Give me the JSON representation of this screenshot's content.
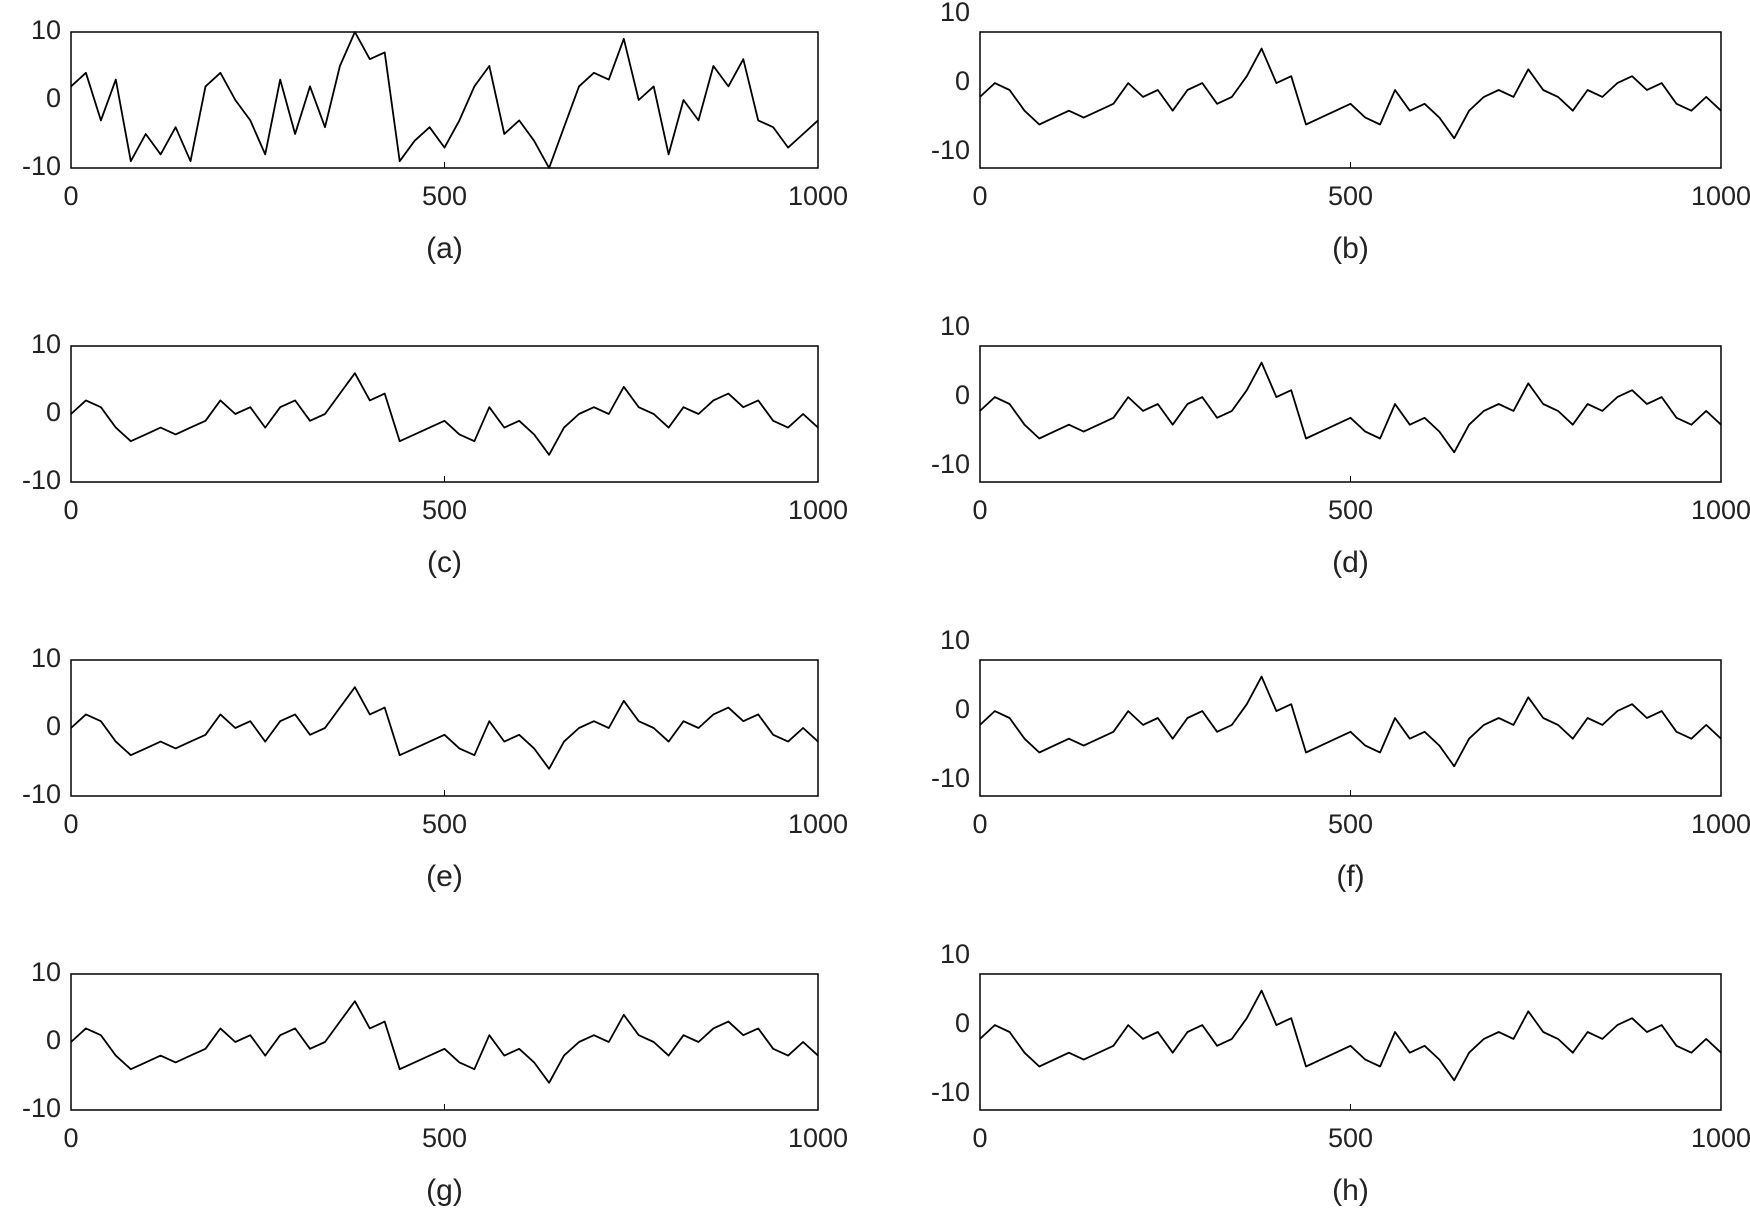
{
  "chart_data": [
    {
      "type": "line",
      "caption": "(a)",
      "color": "#000000",
      "xlim": [
        0,
        1000
      ],
      "xticks": [
        0,
        500,
        1000
      ],
      "ylim": [
        -10,
        10
      ],
      "yticks": [
        -10,
        0,
        10
      ],
      "x": [
        0,
        20,
        40,
        60,
        80,
        100,
        120,
        140,
        160,
        180,
        200,
        220,
        240,
        260,
        280,
        300,
        320,
        340,
        360,
        380,
        400,
        420,
        440,
        460,
        480,
        500,
        520,
        540,
        560,
        580,
        600,
        620,
        640,
        660,
        680,
        700,
        720,
        740,
        760,
        780,
        800,
        820,
        840,
        860,
        880,
        900,
        920,
        940,
        960,
        980,
        1000
      ],
      "values": [
        2,
        4,
        -3,
        3,
        -9,
        -5,
        -8,
        -4,
        -9,
        2,
        4,
        0,
        -3,
        -8,
        3,
        -5,
        2,
        -4,
        5,
        10,
        6,
        7,
        -9,
        -6,
        -4,
        -7,
        -3,
        2,
        5,
        -5,
        -3,
        -6,
        -10,
        -4,
        2,
        4,
        3,
        9,
        0,
        2,
        -8,
        0,
        -3,
        5,
        2,
        6,
        -3,
        -4,
        -7,
        -5,
        -3
      ]
    },
    {
      "type": "line",
      "caption": "(b)",
      "color": "#000000",
      "xlim": [
        0,
        1000
      ],
      "xticks": [
        0,
        500,
        1000
      ],
      "ylim": [
        -12.3,
        7.4
      ],
      "yticks": [
        -10,
        0,
        10
      ],
      "x": [
        0,
        20,
        40,
        60,
        80,
        100,
        120,
        140,
        160,
        180,
        200,
        220,
        240,
        260,
        280,
        300,
        320,
        340,
        360,
        380,
        400,
        420,
        440,
        460,
        480,
        500,
        520,
        540,
        560,
        580,
        600,
        620,
        640,
        660,
        680,
        700,
        720,
        740,
        760,
        780,
        800,
        820,
        840,
        860,
        880,
        900,
        920,
        940,
        960,
        980,
        1000
      ],
      "values": [
        -2,
        0,
        -1,
        -4,
        -6,
        -5,
        -4,
        -5,
        -4,
        -3,
        0,
        -2,
        -1,
        -4,
        -1,
        0,
        -3,
        -2,
        1,
        5,
        0,
        1,
        -6,
        -5,
        -4,
        -3,
        -5,
        -6,
        -1,
        -4,
        -3,
        -5,
        -8,
        -4,
        -2,
        -1,
        -2,
        2,
        -1,
        -2,
        -4,
        -1,
        -2,
        0,
        1,
        -1,
        0,
        -3,
        -4,
        -2,
        -4
      ]
    },
    {
      "type": "line",
      "caption": "(c)",
      "color": "#000000",
      "xlim": [
        0,
        1000
      ],
      "xticks": [
        0,
        500,
        1000
      ],
      "ylim": [
        -10,
        10
      ],
      "yticks": [
        -10,
        0,
        10
      ],
      "x": [
        0,
        20,
        40,
        60,
        80,
        100,
        120,
        140,
        160,
        180,
        200,
        220,
        240,
        260,
        280,
        300,
        320,
        340,
        360,
        380,
        400,
        420,
        440,
        460,
        480,
        500,
        520,
        540,
        560,
        580,
        600,
        620,
        640,
        660,
        680,
        700,
        720,
        740,
        760,
        780,
        800,
        820,
        840,
        860,
        880,
        900,
        920,
        940,
        960,
        980,
        1000
      ],
      "values": [
        0,
        2,
        1,
        -2,
        -4,
        -3,
        -2,
        -3,
        -2,
        -1,
        2,
        0,
        1,
        -2,
        1,
        2,
        -1,
        0,
        3,
        6,
        2,
        3,
        -4,
        -3,
        -2,
        -1,
        -3,
        -4,
        1,
        -2,
        -1,
        -3,
        -6,
        -2,
        0,
        1,
        0,
        4,
        1,
        0,
        -2,
        1,
        0,
        2,
        3,
        1,
        2,
        -1,
        -2,
        0,
        -2
      ]
    },
    {
      "type": "line",
      "caption": "(d)",
      "color": "#000000",
      "xlim": [
        0,
        1000
      ],
      "xticks": [
        0,
        500,
        1000
      ],
      "ylim": [
        -12.3,
        7.4
      ],
      "yticks": [
        -10,
        0,
        10
      ],
      "x": [
        0,
        20,
        40,
        60,
        80,
        100,
        120,
        140,
        160,
        180,
        200,
        220,
        240,
        260,
        280,
        300,
        320,
        340,
        360,
        380,
        400,
        420,
        440,
        460,
        480,
        500,
        520,
        540,
        560,
        580,
        600,
        620,
        640,
        660,
        680,
        700,
        720,
        740,
        760,
        780,
        800,
        820,
        840,
        860,
        880,
        900,
        920,
        940,
        960,
        980,
        1000
      ],
      "values": [
        -2,
        0,
        -1,
        -4,
        -6,
        -5,
        -4,
        -5,
        -4,
        -3,
        0,
        -2,
        -1,
        -4,
        -1,
        0,
        -3,
        -2,
        1,
        5,
        0,
        1,
        -6,
        -5,
        -4,
        -3,
        -5,
        -6,
        -1,
        -4,
        -3,
        -5,
        -8,
        -4,
        -2,
        -1,
        -2,
        2,
        -1,
        -2,
        -4,
        -1,
        -2,
        0,
        1,
        -1,
        0,
        -3,
        -4,
        -2,
        -4
      ]
    },
    {
      "type": "line",
      "caption": "(e)",
      "color": "#000000",
      "xlim": [
        0,
        1000
      ],
      "xticks": [
        0,
        500,
        1000
      ],
      "ylim": [
        -10,
        10
      ],
      "yticks": [
        -10,
        0,
        10
      ],
      "x": [
        0,
        20,
        40,
        60,
        80,
        100,
        120,
        140,
        160,
        180,
        200,
        220,
        240,
        260,
        280,
        300,
        320,
        340,
        360,
        380,
        400,
        420,
        440,
        460,
        480,
        500,
        520,
        540,
        560,
        580,
        600,
        620,
        640,
        660,
        680,
        700,
        720,
        740,
        760,
        780,
        800,
        820,
        840,
        860,
        880,
        900,
        920,
        940,
        960,
        980,
        1000
      ],
      "values": [
        0,
        2,
        1,
        -2,
        -4,
        -3,
        -2,
        -3,
        -2,
        -1,
        2,
        0,
        1,
        -2,
        1,
        2,
        -1,
        0,
        3,
        6,
        2,
        3,
        -4,
        -3,
        -2,
        -1,
        -3,
        -4,
        1,
        -2,
        -1,
        -3,
        -6,
        -2,
        0,
        1,
        0,
        4,
        1,
        0,
        -2,
        1,
        0,
        2,
        3,
        1,
        2,
        -1,
        -2,
        0,
        -2
      ]
    },
    {
      "type": "line",
      "caption": "(f)",
      "color": "#000000",
      "xlim": [
        0,
        1000
      ],
      "xticks": [
        0,
        500,
        1000
      ],
      "ylim": [
        -12.3,
        7.4
      ],
      "yticks": [
        -10,
        0,
        10
      ],
      "x": [
        0,
        20,
        40,
        60,
        80,
        100,
        120,
        140,
        160,
        180,
        200,
        220,
        240,
        260,
        280,
        300,
        320,
        340,
        360,
        380,
        400,
        420,
        440,
        460,
        480,
        500,
        520,
        540,
        560,
        580,
        600,
        620,
        640,
        660,
        680,
        700,
        720,
        740,
        760,
        780,
        800,
        820,
        840,
        860,
        880,
        900,
        920,
        940,
        960,
        980,
        1000
      ],
      "values": [
        -2,
        0,
        -1,
        -4,
        -6,
        -5,
        -4,
        -5,
        -4,
        -3,
        0,
        -2,
        -1,
        -4,
        -1,
        0,
        -3,
        -2,
        1,
        5,
        0,
        1,
        -6,
        -5,
        -4,
        -3,
        -5,
        -6,
        -1,
        -4,
        -3,
        -5,
        -8,
        -4,
        -2,
        -1,
        -2,
        2,
        -1,
        -2,
        -4,
        -1,
        -2,
        0,
        1,
        -1,
        0,
        -3,
        -4,
        -2,
        -4
      ]
    },
    {
      "type": "line",
      "caption": "(g)",
      "color": "#000000",
      "xlim": [
        0,
        1000
      ],
      "xticks": [
        0,
        500,
        1000
      ],
      "ylim": [
        -10,
        10
      ],
      "yticks": [
        -10,
        0,
        10
      ],
      "x": [
        0,
        20,
        40,
        60,
        80,
        100,
        120,
        140,
        160,
        180,
        200,
        220,
        240,
        260,
        280,
        300,
        320,
        340,
        360,
        380,
        400,
        420,
        440,
        460,
        480,
        500,
        520,
        540,
        560,
        580,
        600,
        620,
        640,
        660,
        680,
        700,
        720,
        740,
        760,
        780,
        800,
        820,
        840,
        860,
        880,
        900,
        920,
        940,
        960,
        980,
        1000
      ],
      "values": [
        0,
        2,
        1,
        -2,
        -4,
        -3,
        -2,
        -3,
        -2,
        -1,
        2,
        0,
        1,
        -2,
        1,
        2,
        -1,
        0,
        3,
        6,
        2,
        3,
        -4,
        -3,
        -2,
        -1,
        -3,
        -4,
        1,
        -2,
        -1,
        -3,
        -6,
        -2,
        0,
        1,
        0,
        4,
        1,
        0,
        -2,
        1,
        0,
        2,
        3,
        1,
        2,
        -1,
        -2,
        0,
        -2
      ]
    },
    {
      "type": "line",
      "caption": "(h)",
      "color": "#000000",
      "xlim": [
        0,
        1000
      ],
      "xticks": [
        0,
        500,
        1000
      ],
      "ylim": [
        -12.3,
        7.4
      ],
      "yticks": [
        -10,
        0,
        10
      ],
      "x": [
        0,
        20,
        40,
        60,
        80,
        100,
        120,
        140,
        160,
        180,
        200,
        220,
        240,
        260,
        280,
        300,
        320,
        340,
        360,
        380,
        400,
        420,
        440,
        460,
        480,
        500,
        520,
        540,
        560,
        580,
        600,
        620,
        640,
        660,
        680,
        700,
        720,
        740,
        760,
        780,
        800,
        820,
        840,
        860,
        880,
        900,
        920,
        940,
        960,
        980,
        1000
      ],
      "values": [
        -2,
        0,
        -1,
        -4,
        -6,
        -5,
        -4,
        -5,
        -4,
        -3,
        0,
        -2,
        -1,
        -4,
        -1,
        0,
        -3,
        -2,
        1,
        5,
        0,
        1,
        -6,
        -5,
        -4,
        -3,
        -5,
        -6,
        -1,
        -4,
        -3,
        -5,
        -8,
        -4,
        -2,
        -1,
        -2,
        2,
        -1,
        -2,
        -4,
        -1,
        -2,
        0,
        1,
        -1,
        0,
        -3,
        -4,
        -2,
        -4
      ]
    }
  ]
}
